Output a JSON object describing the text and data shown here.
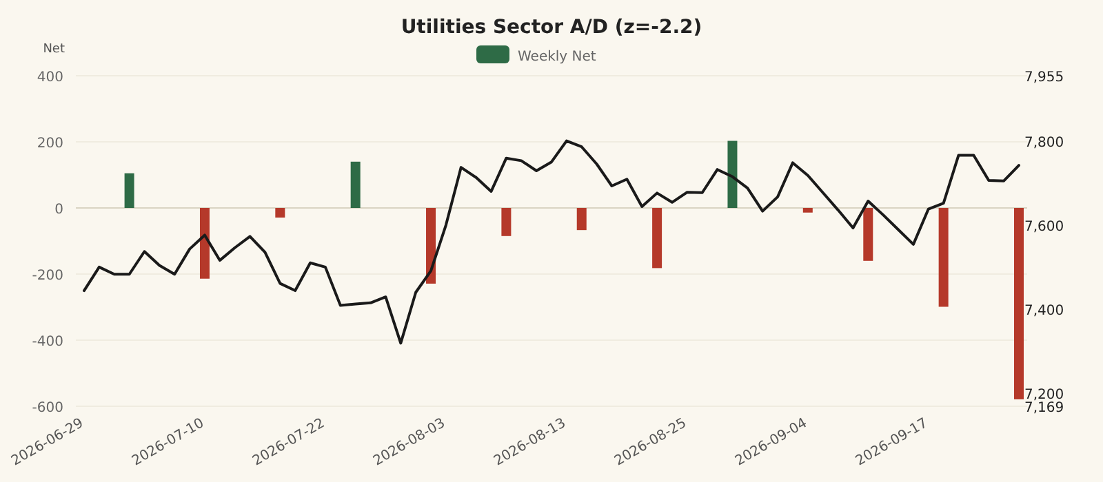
{
  "chart_data": {
    "type": "bar",
    "title": "Utilities Sector A/D (z=-2.2)",
    "ylabel": "Net",
    "categories": [
      "2026-06-29",
      null,
      null,
      null,
      null,
      null,
      null,
      null,
      "2026-07-10",
      null,
      null,
      null,
      null,
      null,
      null,
      null,
      "2026-07-22",
      null,
      null,
      null,
      null,
      null,
      null,
      null,
      "2026-08-03",
      null,
      null,
      null,
      null,
      null,
      null,
      null,
      "2026-08-13",
      null,
      null,
      null,
      null,
      null,
      null,
      null,
      "2026-08-25",
      null,
      null,
      null,
      null,
      null,
      null,
      null,
      "2026-09-04",
      null,
      null,
      null,
      null,
      null,
      null,
      null,
      "2026-09-17",
      null,
      null,
      null,
      null,
      null,
      null
    ],
    "series": [
      {
        "name": "Weekly Net",
        "color": "#2e6b46",
        "values": [
          null,
          null,
          null,
          105,
          null,
          null,
          null,
          null,
          -214,
          null,
          null,
          null,
          null,
          -29,
          null,
          null,
          null,
          null,
          140,
          null,
          null,
          null,
          null,
          -229,
          null,
          null,
          null,
          null,
          -85,
          null,
          null,
          null,
          null,
          -67,
          null,
          null,
          null,
          null,
          -182,
          null,
          null,
          null,
          null,
          203,
          null,
          null,
          null,
          null,
          -14,
          null,
          null,
          null,
          -160,
          null,
          null,
          null,
          null,
          -299,
          null,
          null,
          null,
          null,
          -579
        ],
        "colors": [
          null,
          null,
          null,
          "#2e6b46",
          null,
          null,
          null,
          null,
          "#b5392a",
          null,
          null,
          null,
          null,
          "#b5392a",
          null,
          null,
          null,
          null,
          "#2e6b46",
          null,
          null,
          null,
          null,
          "#b5392a",
          null,
          null,
          null,
          null,
          "#b5392a",
          null,
          null,
          null,
          null,
          "#b5392a",
          null,
          null,
          null,
          null,
          "#b5392a",
          null,
          null,
          null,
          null,
          "#2e6b46",
          null,
          null,
          null,
          null,
          "#b5392a",
          null,
          null,
          null,
          "#b5392a",
          null,
          null,
          null,
          null,
          "#b5392a",
          null,
          null,
          null,
          null,
          "#b5392a"
        ]
      },
      {
        "type": "line",
        "axis": "y2",
        "color": "#1a1a1a",
        "values": [
          7444,
          7500,
          7483,
          7483,
          7537,
          7504,
          7483,
          7543,
          7576,
          7516,
          7546,
          7573,
          7535,
          7461,
          7444,
          7510,
          7500,
          7409,
          7412,
          7415,
          7429,
          7319,
          7440,
          7491,
          7600,
          7737,
          7713,
          7680,
          7759,
          7753,
          7729,
          7750,
          7800,
          7786,
          7745,
          7693,
          7709,
          7644,
          7676,
          7654,
          7678,
          7677,
          7732,
          7715,
          7688,
          7633,
          7667,
          7748,
          7718,
          7677,
          7636,
          7593,
          7657,
          7624,
          7589,
          7554,
          7638,
          7652,
          7766,
          7766,
          7706,
          7705,
          7742
        ]
      }
    ],
    "ylim": [
      -600,
      400
    ],
    "yticks": [
      -600,
      -400,
      -200,
      0,
      200,
      400
    ],
    "y2lim": [
      7169,
      7955
    ],
    "y2ticks": [
      {
        "value": 7169,
        "label": "7,169"
      },
      {
        "value": 7200,
        "label": "7,200"
      },
      {
        "value": 7400,
        "label": "7,400"
      },
      {
        "value": 7600,
        "label": "7,600"
      },
      {
        "value": 7800,
        "label": "7,800"
      },
      {
        "value": 7955,
        "label": "7,955"
      }
    ],
    "ref_lines": [
      {
        "axis": "y",
        "value": 0,
        "color": "#d9d4c3"
      }
    ],
    "grid": "y",
    "legend": "top",
    "marker": "none",
    "line_style": "solid"
  }
}
